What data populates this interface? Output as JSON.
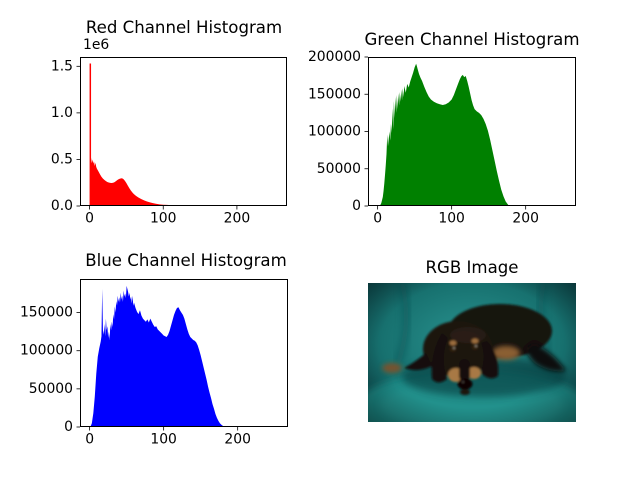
{
  "figure": {
    "background": "#ffffff",
    "text_color": "#000000",
    "spine_color": "#000000"
  },
  "chart_data": [
    {
      "panel": "red",
      "type": "bar",
      "subtype": "histogram",
      "title": "Red Channel Histogram",
      "color": "#ff0000",
      "xlim": [
        -13,
        268
      ],
      "ylim": [
        0,
        1600000
      ],
      "xticks": [
        0,
        100,
        200
      ],
      "xtick_labels": [
        "0",
        "100",
        "200"
      ],
      "yticks": [
        0,
        500000,
        1000000,
        1500000
      ],
      "ytick_labels": [
        "0.0",
        "0.5",
        "1.0",
        "1.5"
      ],
      "offset_label": "1e6",
      "grid": false,
      "legend": null,
      "profile": [
        [
          0,
          0
        ],
        [
          0,
          1530000
        ],
        [
          2,
          1530000
        ],
        [
          2,
          520000
        ],
        [
          3,
          460000
        ],
        [
          4,
          500000
        ],
        [
          5,
          455000
        ],
        [
          6,
          480000
        ],
        [
          7,
          430000
        ],
        [
          8,
          465000
        ],
        [
          9,
          420000
        ],
        [
          10,
          400000
        ],
        [
          12,
          372000
        ],
        [
          14,
          342000
        ],
        [
          16,
          316000
        ],
        [
          18,
          295000
        ],
        [
          20,
          280000
        ],
        [
          22,
          268000
        ],
        [
          24,
          258000
        ],
        [
          26,
          252000
        ],
        [
          28,
          248000
        ],
        [
          30,
          247000
        ],
        [
          32,
          249000
        ],
        [
          34,
          256000
        ],
        [
          36,
          268000
        ],
        [
          38,
          280000
        ],
        [
          40,
          290000
        ],
        [
          42,
          296000
        ],
        [
          44,
          298000
        ],
        [
          46,
          288000
        ],
        [
          48,
          270000
        ],
        [
          50,
          245000
        ],
        [
          52,
          218000
        ],
        [
          54,
          191000
        ],
        [
          56,
          166000
        ],
        [
          58,
          146000
        ],
        [
          60,
          129000
        ],
        [
          63,
          109000
        ],
        [
          66,
          93000
        ],
        [
          70,
          75000
        ],
        [
          74,
          61000
        ],
        [
          78,
          49000
        ],
        [
          82,
          39000
        ],
        [
          86,
          31000
        ],
        [
          90,
          24000
        ],
        [
          95,
          18000
        ],
        [
          100,
          14000
        ],
        [
          105,
          11500
        ],
        [
          110,
          10000
        ],
        [
          115,
          9000
        ],
        [
          120,
          8000
        ],
        [
          125,
          7000
        ],
        [
          128,
          6200
        ],
        [
          131,
          5200
        ],
        [
          134,
          3500
        ],
        [
          135,
          0
        ]
      ]
    },
    {
      "panel": "green",
      "type": "bar",
      "subtype": "histogram",
      "title": "Green Channel Histogram",
      "color": "#008000",
      "xlim": [
        -13,
        268
      ],
      "ylim": [
        0,
        200000
      ],
      "xticks": [
        0,
        100,
        200
      ],
      "xtick_labels": [
        "0",
        "100",
        "200"
      ],
      "yticks": [
        0,
        50000,
        100000,
        150000,
        200000
      ],
      "ytick_labels": [
        "0",
        "50000",
        "100000",
        "150000",
        "200000"
      ],
      "offset_label": "",
      "grid": false,
      "legend": null,
      "profile": [
        [
          3,
          0
        ],
        [
          5,
          4000
        ],
        [
          7,
          12000
        ],
        [
          8,
          20000
        ],
        [
          9,
          30000
        ],
        [
          10,
          42000
        ],
        [
          11,
          55000
        ],
        [
          12,
          70000
        ],
        [
          13,
          96000
        ],
        [
          14,
          80000
        ],
        [
          15,
          90000
        ],
        [
          16,
          100000
        ],
        [
          17,
          88000
        ],
        [
          18,
          110000
        ],
        [
          19,
          98000
        ],
        [
          20,
          131000
        ],
        [
          21,
          103000
        ],
        [
          22,
          141000
        ],
        [
          23,
          118000
        ],
        [
          24,
          146000
        ],
        [
          25,
          125000
        ],
        [
          26,
          149000
        ],
        [
          27,
          130000
        ],
        [
          28,
          151000
        ],
        [
          29,
          135000
        ],
        [
          30,
          153000
        ],
        [
          31,
          140000
        ],
        [
          32,
          156000
        ],
        [
          33,
          142000
        ],
        [
          34,
          158000
        ],
        [
          35,
          146000
        ],
        [
          36,
          161000
        ],
        [
          38,
          152000
        ],
        [
          40,
          164000
        ],
        [
          42,
          159000
        ],
        [
          44,
          167000
        ],
        [
          46,
          173000
        ],
        [
          48,
          179000
        ],
        [
          50,
          186000
        ],
        [
          52,
          191000
        ],
        [
          53,
          188000
        ],
        [
          54,
          184000
        ],
        [
          56,
          177000
        ],
        [
          58,
          172000
        ],
        [
          60,
          168000
        ],
        [
          63,
          160000
        ],
        [
          66,
          153000
        ],
        [
          69,
          147000
        ],
        [
          72,
          143000
        ],
        [
          76,
          140000
        ],
        [
          80,
          138000
        ],
        [
          84,
          136500
        ],
        [
          88,
          135500
        ],
        [
          92,
          136500
        ],
        [
          96,
          139000
        ],
        [
          100,
          143000
        ],
        [
          103,
          149000
        ],
        [
          106,
          157000
        ],
        [
          109,
          165000
        ],
        [
          111,
          170000
        ],
        [
          113,
          174000
        ],
        [
          115,
          176000
        ],
        [
          117,
          173000
        ],
        [
          119,
          174500
        ],
        [
          121,
          168000
        ],
        [
          123,
          160000
        ],
        [
          125,
          151000
        ],
        [
          127,
          142000
        ],
        [
          129,
          135000
        ],
        [
          131,
          130000
        ],
        [
          134,
          127000
        ],
        [
          137,
          125000
        ],
        [
          140,
          122000
        ],
        [
          143,
          117000
        ],
        [
          146,
          110000
        ],
        [
          149,
          101000
        ],
        [
          152,
          89000
        ],
        [
          155,
          75000
        ],
        [
          158,
          61000
        ],
        [
          161,
          47000
        ],
        [
          164,
          34000
        ],
        [
          167,
          22000
        ],
        [
          170,
          13000
        ],
        [
          173,
          6000
        ],
        [
          176,
          2000
        ],
        [
          178,
          0
        ]
      ]
    },
    {
      "panel": "blue",
      "type": "bar",
      "subtype": "histogram",
      "title": "Blue Channel Histogram",
      "color": "#0000ff",
      "xlim": [
        -13,
        268
      ],
      "ylim": [
        0,
        194000
      ],
      "xticks": [
        0,
        100,
        200
      ],
      "xtick_labels": [
        "0",
        "100",
        "200"
      ],
      "yticks": [
        0,
        50000,
        100000,
        150000
      ],
      "ytick_labels": [
        "0",
        "50000",
        "100000",
        "150000"
      ],
      "offset_label": "",
      "grid": false,
      "legend": null,
      "profile": [
        [
          1,
          0
        ],
        [
          3,
          5000
        ],
        [
          5,
          18000
        ],
        [
          7,
          40000
        ],
        [
          9,
          70000
        ],
        [
          11,
          92000
        ],
        [
          13,
          103000
        ],
        [
          15,
          112000
        ],
        [
          16,
          119000
        ],
        [
          17,
          181000
        ],
        [
          18,
          127000
        ],
        [
          19,
          121000
        ],
        [
          20,
          135000
        ],
        [
          21,
          119000
        ],
        [
          22,
          142000
        ],
        [
          23,
          127000
        ],
        [
          24,
          132000
        ],
        [
          25,
          117000
        ],
        [
          26,
          125000
        ],
        [
          27,
          114000
        ],
        [
          28,
          135000
        ],
        [
          29,
          127000
        ],
        [
          30,
          138000
        ],
        [
          31,
          131000
        ],
        [
          32,
          148000
        ],
        [
          33,
          141000
        ],
        [
          34,
          158000
        ],
        [
          35,
          150000
        ],
        [
          36,
          165000
        ],
        [
          37,
          159000
        ],
        [
          38,
          172000
        ],
        [
          39,
          164000
        ],
        [
          40,
          170000
        ],
        [
          41,
          163000
        ],
        [
          42,
          176000
        ],
        [
          43,
          167000
        ],
        [
          44,
          172000
        ],
        [
          45,
          164000
        ],
        [
          46,
          179000
        ],
        [
          47,
          171000
        ],
        [
          48,
          175000
        ],
        [
          49,
          169000
        ],
        [
          50,
          185000
        ],
        [
          51,
          181000
        ],
        [
          52,
          177000
        ],
        [
          53,
          171000
        ],
        [
          54,
          176000
        ],
        [
          55,
          167000
        ],
        [
          56,
          171000
        ],
        [
          57,
          162000
        ],
        [
          58,
          172000
        ],
        [
          59,
          159000
        ],
        [
          60,
          163000
        ],
        [
          62,
          156000
        ],
        [
          64,
          151000
        ],
        [
          66,
          148000
        ],
        [
          68,
          153000
        ],
        [
          70,
          146000
        ],
        [
          72,
          142000
        ],
        [
          74,
          140000
        ],
        [
          76,
          138000
        ],
        [
          78,
          141000
        ],
        [
          80,
          137000
        ],
        [
          82,
          142000
        ],
        [
          84,
          138000
        ],
        [
          86,
          134000
        ],
        [
          88,
          131000
        ],
        [
          90,
          132000
        ],
        [
          92,
          128000
        ],
        [
          94,
          126000
        ],
        [
          96,
          124000
        ],
        [
          98,
          122000
        ],
        [
          100,
          120000
        ],
        [
          102,
          119000
        ],
        [
          104,
          118000
        ],
        [
          106,
          121000
        ],
        [
          108,
          126000
        ],
        [
          110,
          133000
        ],
        [
          112,
          140000
        ],
        [
          114,
          147000
        ],
        [
          116,
          152000
        ],
        [
          118,
          156000
        ],
        [
          120,
          157000
        ],
        [
          122,
          153000
        ],
        [
          124,
          150000
        ],
        [
          126,
          147000
        ],
        [
          128,
          142000
        ],
        [
          130,
          135000
        ],
        [
          132,
          128000
        ],
        [
          134,
          122000
        ],
        [
          136,
          118000
        ],
        [
          138,
          116000
        ],
        [
          140,
          114000
        ],
        [
          142,
          113000
        ],
        [
          144,
          111000
        ],
        [
          146,
          107000
        ],
        [
          148,
          101000
        ],
        [
          150,
          94000
        ],
        [
          152,
          86000
        ],
        [
          154,
          78000
        ],
        [
          156,
          70000
        ],
        [
          158,
          62000
        ],
        [
          160,
          53000
        ],
        [
          162,
          45000
        ],
        [
          164,
          38000
        ],
        [
          166,
          30000
        ],
        [
          168,
          24000
        ],
        [
          170,
          17000
        ],
        [
          172,
          12000
        ],
        [
          174,
          8000
        ],
        [
          176,
          5000
        ],
        [
          178,
          3000
        ],
        [
          180,
          1500
        ],
        [
          182,
          0
        ]
      ]
    },
    {
      "panel": "rgb",
      "type": "image",
      "title": "RGB Image",
      "subject": "Black-and-tan long-haired dachshund lying on a teal couch",
      "palette": {
        "couch_teal": "#1d8280",
        "couch_highlight": "#2a9a94",
        "couch_shadow": "#0a3c42",
        "fur_dark": "#17120e",
        "fur_highlight": "#342818",
        "tan": "#a87944",
        "tan_dark": "#7c5631",
        "nose": "#070505"
      }
    }
  ]
}
